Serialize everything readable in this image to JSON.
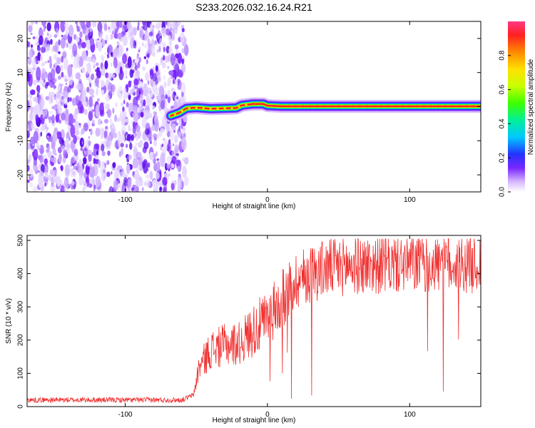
{
  "figure_title": "S233.2026.032.16.24.R21",
  "chart_data": [
    {
      "type": "heatmap",
      "name": "spectrogram",
      "xlabel": "Height of straight line (km)",
      "ylabel": "Frequency (Hz)",
      "xlim": [
        -169,
        150
      ],
      "ylim": [
        -25,
        25
      ],
      "x_ticks": [
        {
          "value": -100,
          "label": "-100"
        },
        {
          "value": 0,
          "label": "0"
        },
        {
          "value": 100,
          "label": "100"
        }
      ],
      "y_ticks": [
        {
          "value": -20,
          "label": "-20"
        },
        {
          "value": -10,
          "label": "-10"
        },
        {
          "value": 0,
          "label": "0"
        },
        {
          "value": 10,
          "label": "10"
        },
        {
          "value": 20,
          "label": "20"
        }
      ],
      "noise_region_x": [
        -169,
        -60
      ],
      "tone_track": [
        {
          "x": -68,
          "y": -2.7
        },
        {
          "x": -62,
          "y": -1.8
        },
        {
          "x": -57,
          "y": -0.5
        },
        {
          "x": -50,
          "y": -0.3
        },
        {
          "x": -40,
          "y": -0.6
        },
        {
          "x": -30,
          "y": -0.5
        },
        {
          "x": -22,
          "y": -0.4
        },
        {
          "x": -18,
          "y": 0.4
        },
        {
          "x": -10,
          "y": 0.8
        },
        {
          "x": -3,
          "y": 0.8
        },
        {
          "x": 0,
          "y": 0.3
        },
        {
          "x": 10,
          "y": 0.1
        },
        {
          "x": 50,
          "y": 0.1
        },
        {
          "x": 100,
          "y": 0.1
        },
        {
          "x": 130,
          "y": 0.1
        },
        {
          "x": 150,
          "y": 0.1
        }
      ],
      "colorbar": {
        "label": "Normalized spectral amplitude",
        "range": [
          0,
          1
        ],
        "ticks": [
          {
            "value": 0.0,
            "label": "0.0"
          },
          {
            "value": 0.2,
            "label": "0.2"
          },
          {
            "value": 0.4,
            "label": "0.4"
          },
          {
            "value": 0.6,
            "label": "0.6"
          },
          {
            "value": 0.8,
            "label": "0.8"
          }
        ]
      }
    },
    {
      "type": "line",
      "name": "snr",
      "xlabel": "Height of straight line (km)",
      "ylabel": "SNR (10 * v/v)",
      "xlim": [
        -169,
        150
      ],
      "ylim": [
        0,
        515
      ],
      "color": "#f03030",
      "x_ticks": [
        {
          "value": -100,
          "label": "-100"
        },
        {
          "value": 0,
          "label": "0"
        },
        {
          "value": 100,
          "label": "100"
        }
      ],
      "y_ticks": [
        {
          "value": 0,
          "label": "0"
        },
        {
          "value": 100,
          "label": "100"
        },
        {
          "value": 200,
          "label": "200"
        },
        {
          "value": 300,
          "label": "300"
        },
        {
          "value": 400,
          "label": "400"
        },
        {
          "value": 500,
          "label": "500"
        }
      ],
      "baseline": [
        {
          "x": -169,
          "y": 20
        },
        {
          "x": -60,
          "y": 20
        },
        {
          "x": -52,
          "y": 35
        },
        {
          "x": -48,
          "y": 120
        },
        {
          "x": -40,
          "y": 170
        },
        {
          "x": -30,
          "y": 185
        },
        {
          "x": -20,
          "y": 190
        },
        {
          "x": -10,
          "y": 230
        },
        {
          "x": 0,
          "y": 260
        },
        {
          "x": 10,
          "y": 320
        },
        {
          "x": 20,
          "y": 380
        },
        {
          "x": 30,
          "y": 400
        },
        {
          "x": 40,
          "y": 415
        },
        {
          "x": 60,
          "y": 425
        },
        {
          "x": 100,
          "y": 430
        },
        {
          "x": 150,
          "y": 430
        }
      ]
    }
  ]
}
